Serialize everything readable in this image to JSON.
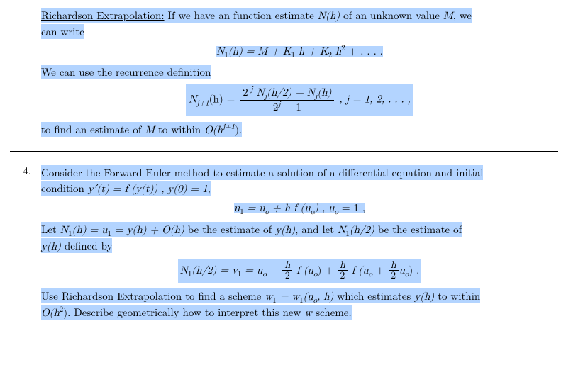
{
  "highlight_color": "#b3d4ff",
  "text_color": "#000000",
  "background_color": "#ffffff",
  "font_size_body": 15,
  "top": {
    "title": "Richardson Extrapolation:",
    "intro_a": " If we have an function estimate ",
    "intro_b": " of an unknown value ",
    "intro_c": ", we",
    "intro_d": "can write",
    "N_of_h": "N(h)",
    "M_sym": "M",
    "eq1_lhs": "N",
    "eq1_sub": "1",
    "eq1_arg": "(h) = M + K",
    "eq1_k1sub": "1",
    "eq1_mid": " h + K",
    "eq1_k2sub": "2",
    "eq1_end": " h",
    "eq1_sq": "2",
    "eq1_tail": " + . . .  .",
    "rec_lead": "We can use the recurrence definition",
    "eq2_lhs_a": "N",
    "eq2_lhs_sub": "j+1",
    "eq2_lhs_b": "(h) = ",
    "eq2_num_a": "2",
    "eq2_num_sup": " j",
    "eq2_num_b": "  N",
    "eq2_num_sub1": "j",
    "eq2_num_c": "(h/2) − N",
    "eq2_num_sub2": "j",
    "eq2_num_d": "(h)",
    "eq2_den_a": "2",
    "eq2_den_sup": "j",
    "eq2_den_b": " − 1",
    "eq2_tail": " ,   j = 1, 2, . . .  ,",
    "closing_a": "to find an estimate of ",
    "closing_M": "M",
    "closing_b": " to within ",
    "closing_O": "O(h",
    "closing_exp": "j+1",
    "closing_c": ").",
    "title_underlined": true
  },
  "q4": {
    "number": "4.",
    "line1_a": "Consider the Forward Euler method to estimate a solution of a differential equation and initial",
    "line2_a": "condition ",
    "cond_y": "y′(t) = f (y(t)) ,  y(0) = 1,",
    "eq3": "u",
    "eq3_s1": "1",
    "eq3_b": " = u",
    "eq3_so": "o",
    "eq3_c": " + h f (u",
    "eq3_so2": "o",
    "eq3_d": ") ,   u",
    "eq3_so3": "o",
    "eq3_e": " = 1  ,",
    "line3_a": "Let ",
    "line3_N1": "N",
    "line3_N1s": "1",
    "line3_b": "(h) = u",
    "line3_u1s": "1",
    "line3_c": " = y(h) + O(h)",
    "line3_d": " be the estimate of ",
    "line3_yh": "y(h)",
    "line3_e": ", and let ",
    "line3_N1b": "N",
    "line3_N1bs": "1",
    "line3_f": "(h/2)",
    "line3_g": " be the estimate of",
    "line4_a": "y(h)",
    "line4_b": " defined by",
    "eq4_lhs_a": "N",
    "eq4_lhs_s": "1",
    "eq4_lhs_b": "(h/2) = v",
    "eq4_v1s": "1",
    "eq4_c": " = u",
    "eq4_uos": "o",
    "eq4_d": " + ",
    "h_over_2_num": "h",
    "h_over_2_den": "2",
    "eq4_e": " f (u",
    "eq4_uos2": "o",
    "eq4_f": ") + ",
    "eq4_g": " f (u",
    "eq4_uos3": "o",
    "eq4_h": " + ",
    "eq4_i": "u",
    "eq4_uos4": "o",
    "eq4_j": ")  .",
    "line5_a": "Use Richardson Extrapolation to find a scheme ",
    "line5_w": "w",
    "line5_w1s": "1",
    "line5_b": " = w",
    "line5_w1s2": "1",
    "line5_c": "(u",
    "line5_uos": "o",
    "line5_d": ", h)",
    "line5_e": " which estimates ",
    "line5_yh": "y(h)",
    "line5_f": " to within",
    "line6_a": "O(h",
    "line6_exp": "2",
    "line6_b": ").",
    "line6_c": " Describe geometrically how to interpret this new ",
    "line6_w": "w",
    "line6_d": " scheme."
  }
}
